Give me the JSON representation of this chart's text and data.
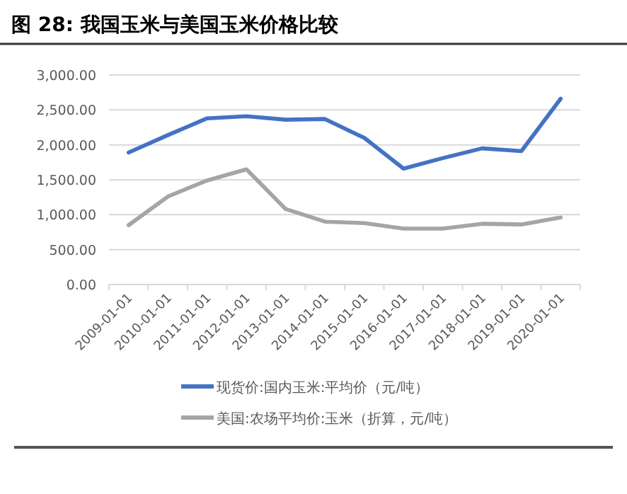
{
  "chart_data": {
    "type": "line",
    "title": "图 28:  我国玉米与美国玉米价格比较",
    "categories": [
      "2009-01-01",
      "2010-01-01",
      "2011-01-01",
      "2012-01-01",
      "2013-01-01",
      "2014-01-01",
      "2015-01-01",
      "2016-01-01",
      "2017-01-01",
      "2018-01-01",
      "2019-01-01",
      "2020-01-01"
    ],
    "series": [
      {
        "name": "现货价:国内玉米:平均价（元/吨）",
        "color": "#4472c4",
        "values": [
          1890,
          2140,
          2380,
          2410,
          2360,
          2370,
          2100,
          1660,
          1810,
          1950,
          1910,
          2660
        ]
      },
      {
        "name": "美国:农场平均价:玉米（折算，元/吨）",
        "color": "#a5a5a5",
        "values": [
          850,
          1260,
          1490,
          1650,
          1080,
          900,
          880,
          800,
          800,
          870,
          860,
          960
        ]
      }
    ],
    "ylim": [
      0,
      3000
    ],
    "yticks": [
      {
        "value": 0,
        "label": "0.00"
      },
      {
        "value": 500,
        "label": "500.00"
      },
      {
        "value": 1000,
        "label": "1,000.00"
      },
      {
        "value": 1500,
        "label": "1,500.00"
      },
      {
        "value": 2000,
        "label": "2,000.00"
      },
      {
        "value": 2500,
        "label": "2,500.00"
      },
      {
        "value": 3000,
        "label": "3,000.00"
      }
    ],
    "grid": "y",
    "legend": "bottom",
    "marker": "none",
    "line_style": "solid"
  }
}
